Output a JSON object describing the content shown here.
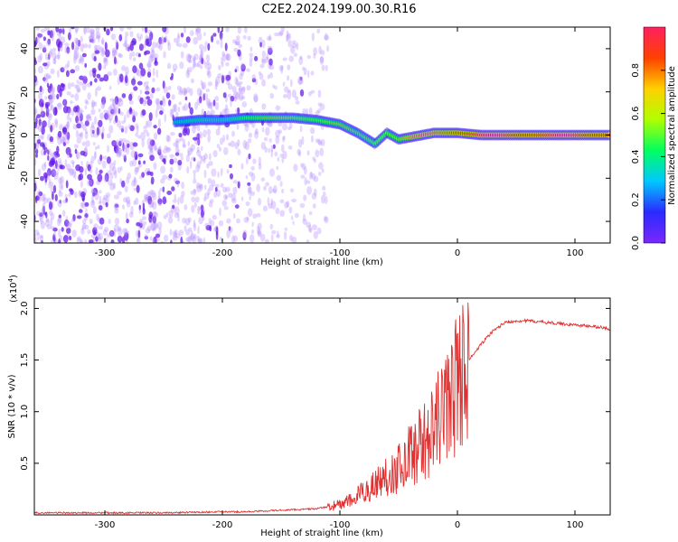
{
  "page_title": "C2E2.2024.199.00.30.R16",
  "colors": {
    "signal": "#e03030",
    "axis": "#000000",
    "spectrum_low": "#7a28ff",
    "spectrum_high": "#ff2050"
  },
  "chart_data": [
    {
      "type": "heatmap",
      "title": "C2E2.2024.199.00.30.R16",
      "xlabel": "Height of straight line (km)",
      "ylabel": "Frequency (Hz)",
      "xlim": [
        -360,
        130
      ],
      "ylim": [
        -50,
        50
      ],
      "xticks": [
        -300,
        -200,
        -100,
        0,
        100
      ],
      "xtick_labels": [
        "-300",
        "-200",
        "-100",
        "0",
        "100"
      ],
      "yticks": [
        -40,
        -20,
        0,
        20,
        40
      ],
      "ytick_labels": [
        "-40",
        "-20",
        "0",
        "20",
        "40"
      ],
      "colorbar": {
        "label": "Normalized spectral amplitude",
        "range": [
          0,
          1
        ],
        "ticks": [
          0.0,
          0.2,
          0.4,
          0.6,
          0.8
        ],
        "tick_labels": [
          "0.0",
          "0.2",
          "0.4",
          "0.6",
          "0.8"
        ],
        "colormap": [
          "#7a28ff",
          "#2a2aff",
          "#00c8ff",
          "#00ff60",
          "#b0ff00",
          "#ffd000",
          "#ff4000",
          "#ff2060"
        ]
      },
      "ridge": {
        "x": [
          -240,
          -220,
          -200,
          -180,
          -160,
          -140,
          -120,
          -100,
          -85,
          -70,
          -60,
          -50,
          -40,
          -30,
          -20,
          -10,
          0,
          20,
          40,
          130
        ],
        "y": [
          6,
          7,
          7,
          8,
          8,
          8,
          7,
          5,
          1,
          -4,
          1,
          -2,
          -1,
          0,
          1,
          1,
          1,
          0,
          0,
          0
        ],
        "amplitude": [
          0.35,
          0.4,
          0.4,
          0.5,
          0.55,
          0.55,
          0.55,
          0.55,
          0.5,
          0.55,
          0.6,
          0.6,
          0.75,
          0.8,
          0.8,
          0.8,
          0.85,
          0.9,
          0.9,
          0.9
        ]
      },
      "background_noise_until_x": -110
    },
    {
      "type": "line",
      "xlabel": "Height of straight line (km)",
      "ylabel": "SNR (10 * v/v)",
      "y_multiplier_label": "(x10",
      "y_multiplier_exponent": "4",
      "xlim": [
        -360,
        130
      ],
      "ylim": [
        0,
        2.1
      ],
      "xticks": [
        -300,
        -200,
        -100,
        0,
        100
      ],
      "xtick_labels": [
        "-300",
        "-200",
        "-100",
        "0",
        "100"
      ],
      "yticks": [
        0.5,
        1.0,
        1.5,
        2.0
      ],
      "ytick_labels": [
        "0.5",
        "1.0",
        "1.5",
        "2.0"
      ],
      "series": [
        {
          "name": "SNR",
          "x": [
            -360,
            -300,
            -250,
            -200,
            -180,
            -160,
            -140,
            -120,
            -110,
            -100,
            -90,
            -80,
            -70,
            -60,
            -50,
            -40,
            -30,
            -20,
            -15,
            -10,
            -5,
            0,
            10,
            20,
            30,
            40,
            50,
            60,
            80,
            100,
            120,
            130
          ],
          "y": [
            0.02,
            0.02,
            0.02,
            0.03,
            0.03,
            0.04,
            0.05,
            0.06,
            0.08,
            0.1,
            0.14,
            0.22,
            0.3,
            0.38,
            0.45,
            0.6,
            0.7,
            0.8,
            0.95,
            1.05,
            1.15,
            1.3,
            1.5,
            1.65,
            1.78,
            1.86,
            1.88,
            1.88,
            1.86,
            1.84,
            1.82,
            1.8
          ]
        }
      ]
    }
  ]
}
